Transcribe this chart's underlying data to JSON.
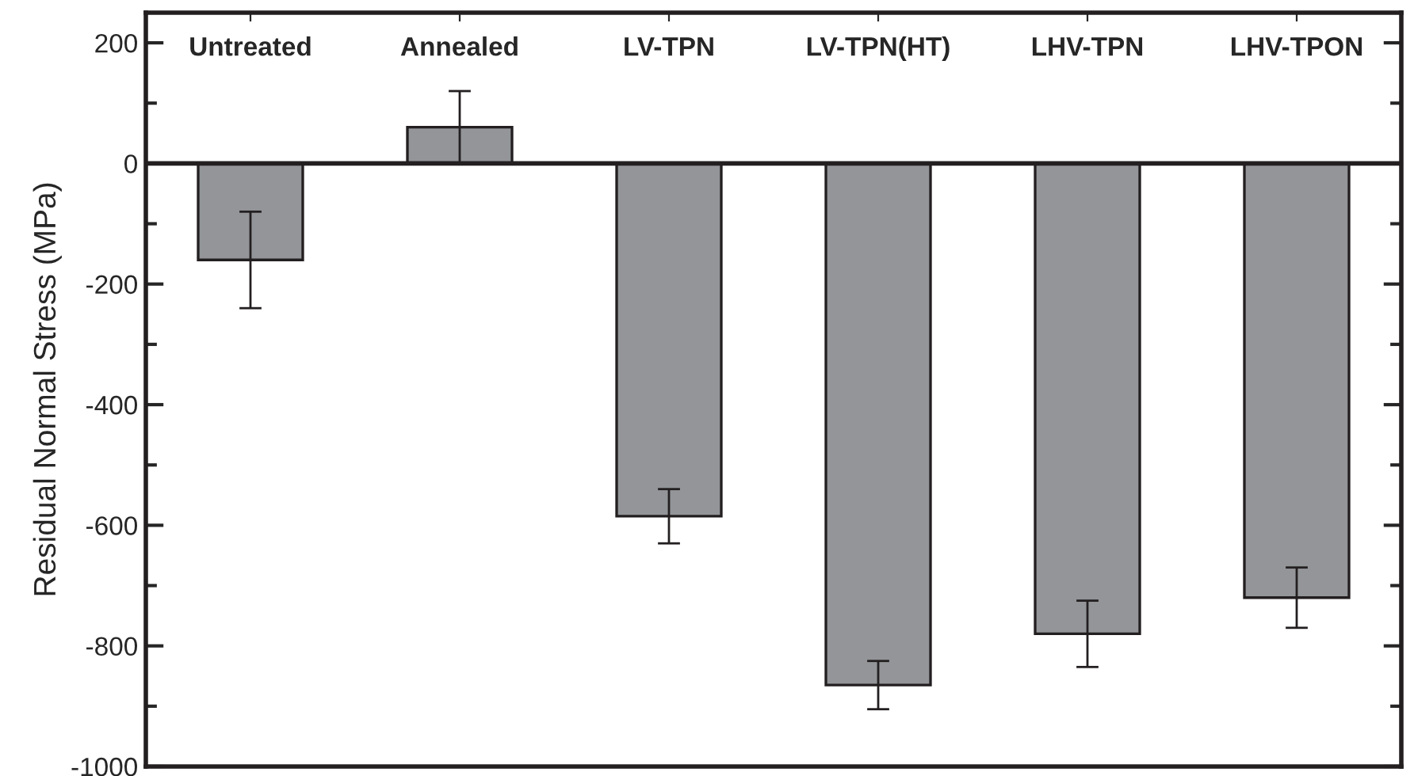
{
  "chart_data": {
    "type": "bar",
    "ylabel": "Residual Normal Stress (MPa)",
    "categories": [
      "Untreated",
      "Annealed",
      "LV-TPN",
      "LV-TPN(HT)",
      "LHV-TPN",
      "LHV-TPON"
    ],
    "series": [
      {
        "color": "#939598",
        "values": [
          -160,
          60,
          -585,
          -865,
          -780,
          -720
        ],
        "errors": [
          80,
          60,
          45,
          40,
          55,
          50
        ]
      }
    ],
    "ylim": [
      -1000,
      250
    ],
    "yticks": [
      -1000,
      -800,
      -600,
      -400,
      -200,
      0,
      200
    ],
    "ref_lines": [
      {
        "axis": "y",
        "value": 0,
        "color": "#231f20"
      }
    ],
    "grid": false,
    "legend": false
  }
}
